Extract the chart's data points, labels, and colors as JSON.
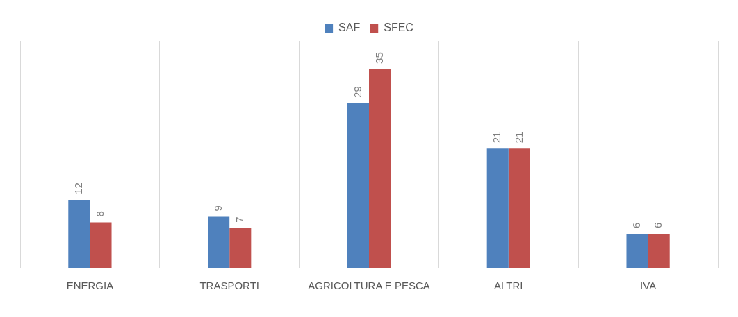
{
  "chart_data": {
    "type": "bar",
    "categories": [
      "ENERGIA",
      "TRASPORTI",
      "AGRICOLTURA E PESCA",
      "ALTRI",
      "IVA"
    ],
    "series": [
      {
        "name": "SAF",
        "color": "#4f81bd",
        "values": [
          12,
          9,
          29,
          21,
          6
        ]
      },
      {
        "name": "SFEC",
        "color": "#c0504d",
        "values": [
          8,
          7,
          35,
          21,
          6
        ]
      }
    ],
    "data_labels": true,
    "grid": "x",
    "legend": "top"
  }
}
